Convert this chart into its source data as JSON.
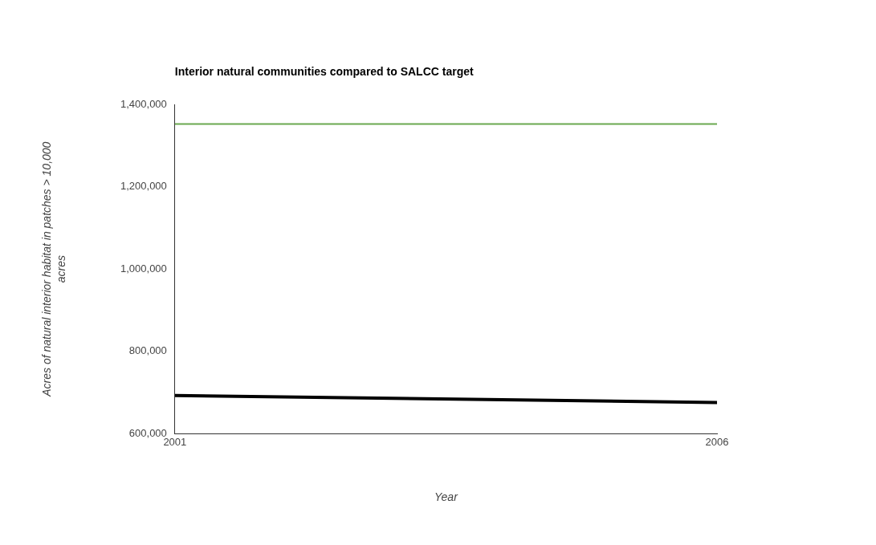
{
  "chart_data": {
    "type": "line",
    "title": "Interior natural communities compared to SALCC target",
    "xlabel": "Year",
    "ylabel": "Acres of natural interior habitat in patches > 10,000 acres",
    "x": [
      2001,
      2006
    ],
    "xlim": [
      2001,
      2006
    ],
    "xticks": [
      2001,
      2006
    ],
    "ylim": [
      600000,
      1400000
    ],
    "yticks": [
      {
        "value": 600000,
        "label": "600,000"
      },
      {
        "value": 800000,
        "label": "800,000"
      },
      {
        "value": 1000000,
        "label": "1,000,000"
      },
      {
        "value": 1200000,
        "label": "1,200,000"
      },
      {
        "value": 1400000,
        "label": "1,400,000"
      }
    ],
    "series": [
      {
        "color": "#000000",
        "values": [
          693000,
          676000
        ]
      },
      {
        "color": "#6aa84f",
        "values": [
          1352000,
          1352000
        ]
      }
    ],
    "grid": false,
    "legend": false,
    "marker": "none",
    "line_style": "solid"
  }
}
